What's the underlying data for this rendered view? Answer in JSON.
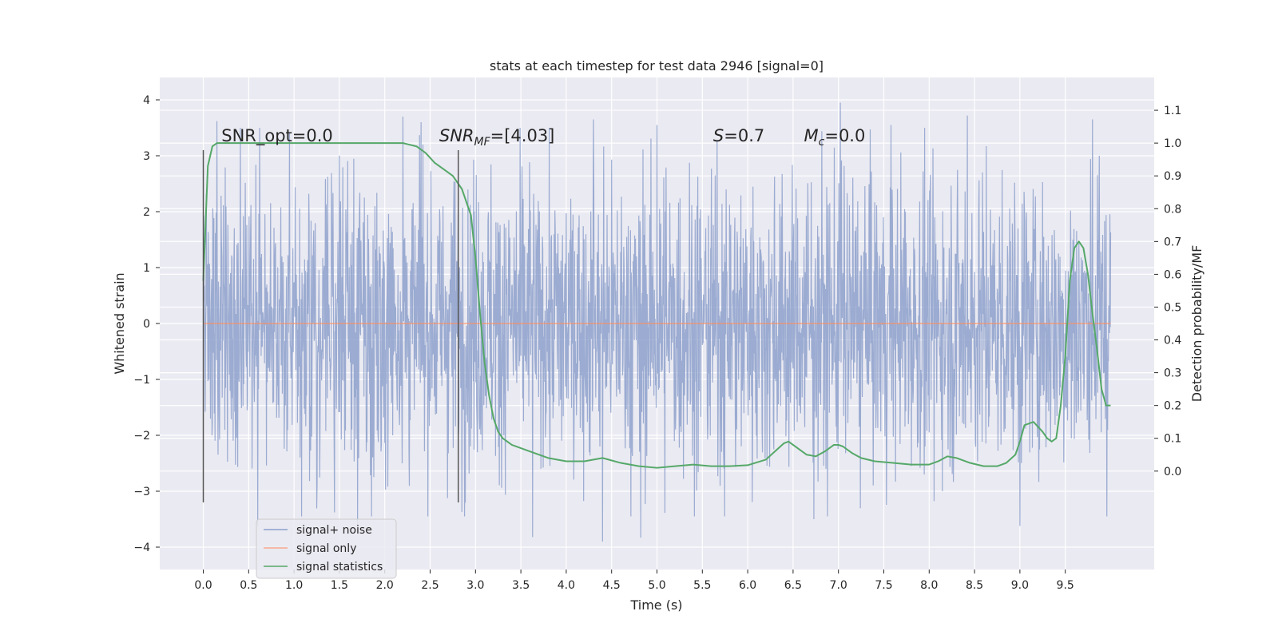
{
  "chart_data": {
    "type": "line",
    "title": "stats at each timestep for test data 2946 [signal=0]",
    "xlabel": "Time (s)",
    "ylabel": "Whitened strain",
    "y2label": "Detection probability/MF",
    "xlim": [
      -0.48,
      10.48
    ],
    "ylim": [
      -4.4,
      4.4
    ],
    "y2lim": [
      -0.3,
      1.2
    ],
    "x_ticks": [
      0.0,
      0.5,
      1.0,
      1.5,
      2.0,
      2.5,
      3.0,
      3.5,
      4.0,
      4.5,
      5.0,
      5.5,
      6.0,
      6.5,
      7.0,
      7.5,
      8.0,
      8.5,
      9.0,
      9.5
    ],
    "x_tick_labels": [
      "0.0",
      "0.5",
      "1.0",
      "1.5",
      "2.0",
      "2.5",
      "3.0",
      "3.5",
      "4.0",
      "4.5",
      "5.0",
      "5.5",
      "6.0",
      "6.5",
      "7.0",
      "7.5",
      "8.0",
      "8.5",
      "9.0",
      "9.5"
    ],
    "y_ticks": [
      4,
      3,
      2,
      1,
      0,
      -1,
      -2,
      -3,
      -4
    ],
    "y_tick_labels": [
      "4",
      "3",
      "2",
      "1",
      "0",
      "−1",
      "−2",
      "−3",
      "−4"
    ],
    "y2_ticks": [
      1.1,
      1.0,
      0.9,
      0.8,
      0.7,
      0.6,
      0.5,
      0.4,
      0.3,
      0.2,
      0.1,
      0.0
    ],
    "y2_tick_labels": [
      "1.1",
      "1.0",
      "0.9",
      "0.8",
      "0.7",
      "0.6",
      "0.5",
      "0.4",
      "0.3",
      "0.2",
      "0.1",
      "0.0"
    ],
    "grid": true,
    "legend": {
      "placement": "lower-left",
      "entries": [
        "signal+ noise",
        "signal only",
        "signal statistics"
      ]
    },
    "annotations": [
      {
        "kind": "plain",
        "text": "SNR_opt=0.0",
        "x": 0.2,
        "y2": 1.0
      },
      {
        "kind": "math",
        "main": "SNR",
        "sub": "MF",
        "rest": "=[4.03]",
        "x": 2.6,
        "y2": 1.0
      },
      {
        "kind": "math",
        "main": "S",
        "sub": "",
        "rest": "=0.7",
        "x": 5.62,
        "y2": 1.0
      },
      {
        "kind": "math",
        "main": "M",
        "sub": "c",
        "rest": "=0.0",
        "x": 6.62,
        "y2": 1.0
      }
    ],
    "vlines": [
      {
        "x": 0.0,
        "ymin": -3.2,
        "ymax": 3.1
      },
      {
        "x": 2.81,
        "ymin": -3.2,
        "ymax": 3.1
      }
    ],
    "series": [
      {
        "name": "signal+ noise",
        "color": "#8da0cb",
        "x_range": [
          0.0,
          10.0
        ],
        "envelope": {
          "typical_amplitude": 1.3,
          "max_positive": 3.95,
          "max_negative": -3.9,
          "peaks_up": [
            [
              0.15,
              3.62
            ],
            [
              0.95,
              3.4
            ],
            [
              2.2,
              3.7
            ],
            [
              2.4,
              3.6
            ],
            [
              4.3,
              3.65
            ],
            [
              5.0,
              3.55
            ],
            [
              7.02,
              3.95
            ],
            [
              7.58,
              3.55
            ],
            [
              8.42,
              3.72
            ],
            [
              9.8,
              3.65
            ]
          ],
          "peaks_down": [
            [
              0.6,
              -3.62
            ],
            [
              1.7,
              -3.6
            ],
            [
              3.63,
              -3.82
            ],
            [
              4.4,
              -3.9
            ],
            [
              4.82,
              -3.83
            ],
            [
              6.73,
              -3.5
            ],
            [
              9.0,
              -3.62
            ]
          ]
        }
      },
      {
        "name": "signal only",
        "color": "#fc8d62",
        "x": [
          0.0,
          10.0
        ],
        "values": [
          0.0,
          0.0
        ]
      },
      {
        "name": "signal statistics",
        "color": "#55a868",
        "axis": "right",
        "x": [
          0.0,
          0.05,
          0.1,
          0.15,
          0.2,
          0.3,
          0.5,
          1.0,
          1.5,
          2.0,
          2.2,
          2.35,
          2.45,
          2.55,
          2.65,
          2.75,
          2.85,
          2.95,
          3.0,
          3.05,
          3.1,
          3.15,
          3.2,
          3.25,
          3.3,
          3.4,
          3.6,
          3.8,
          4.0,
          4.2,
          4.4,
          4.6,
          4.8,
          5.0,
          5.2,
          5.4,
          5.6,
          5.8,
          6.0,
          6.2,
          6.3,
          6.4,
          6.45,
          6.55,
          6.65,
          6.75,
          6.85,
          6.95,
          7.0,
          7.05,
          7.15,
          7.25,
          7.4,
          7.6,
          7.8,
          8.0,
          8.1,
          8.2,
          8.3,
          8.45,
          8.6,
          8.75,
          8.85,
          8.95,
          9.0,
          9.05,
          9.15,
          9.25,
          9.3,
          9.35,
          9.4,
          9.45,
          9.5,
          9.55,
          9.6,
          9.65,
          9.7,
          9.75,
          9.8,
          9.85,
          9.9,
          9.95,
          10.0
        ],
        "values": [
          0.58,
          0.93,
          0.99,
          1.0,
          1.0,
          1.0,
          1.0,
          1.0,
          1.0,
          1.0,
          1.0,
          0.99,
          0.97,
          0.94,
          0.92,
          0.9,
          0.86,
          0.78,
          0.65,
          0.48,
          0.33,
          0.23,
          0.16,
          0.12,
          0.1,
          0.08,
          0.06,
          0.04,
          0.03,
          0.03,
          0.04,
          0.025,
          0.015,
          0.01,
          0.015,
          0.02,
          0.015,
          0.015,
          0.018,
          0.035,
          0.06,
          0.085,
          0.09,
          0.07,
          0.05,
          0.045,
          0.06,
          0.08,
          0.08,
          0.075,
          0.055,
          0.04,
          0.03,
          0.025,
          0.02,
          0.02,
          0.03,
          0.045,
          0.04,
          0.025,
          0.015,
          0.015,
          0.025,
          0.05,
          0.09,
          0.14,
          0.15,
          0.12,
          0.1,
          0.09,
          0.1,
          0.2,
          0.35,
          0.58,
          0.68,
          0.7,
          0.68,
          0.6,
          0.48,
          0.37,
          0.25,
          0.2,
          0.2
        ]
      }
    ]
  }
}
